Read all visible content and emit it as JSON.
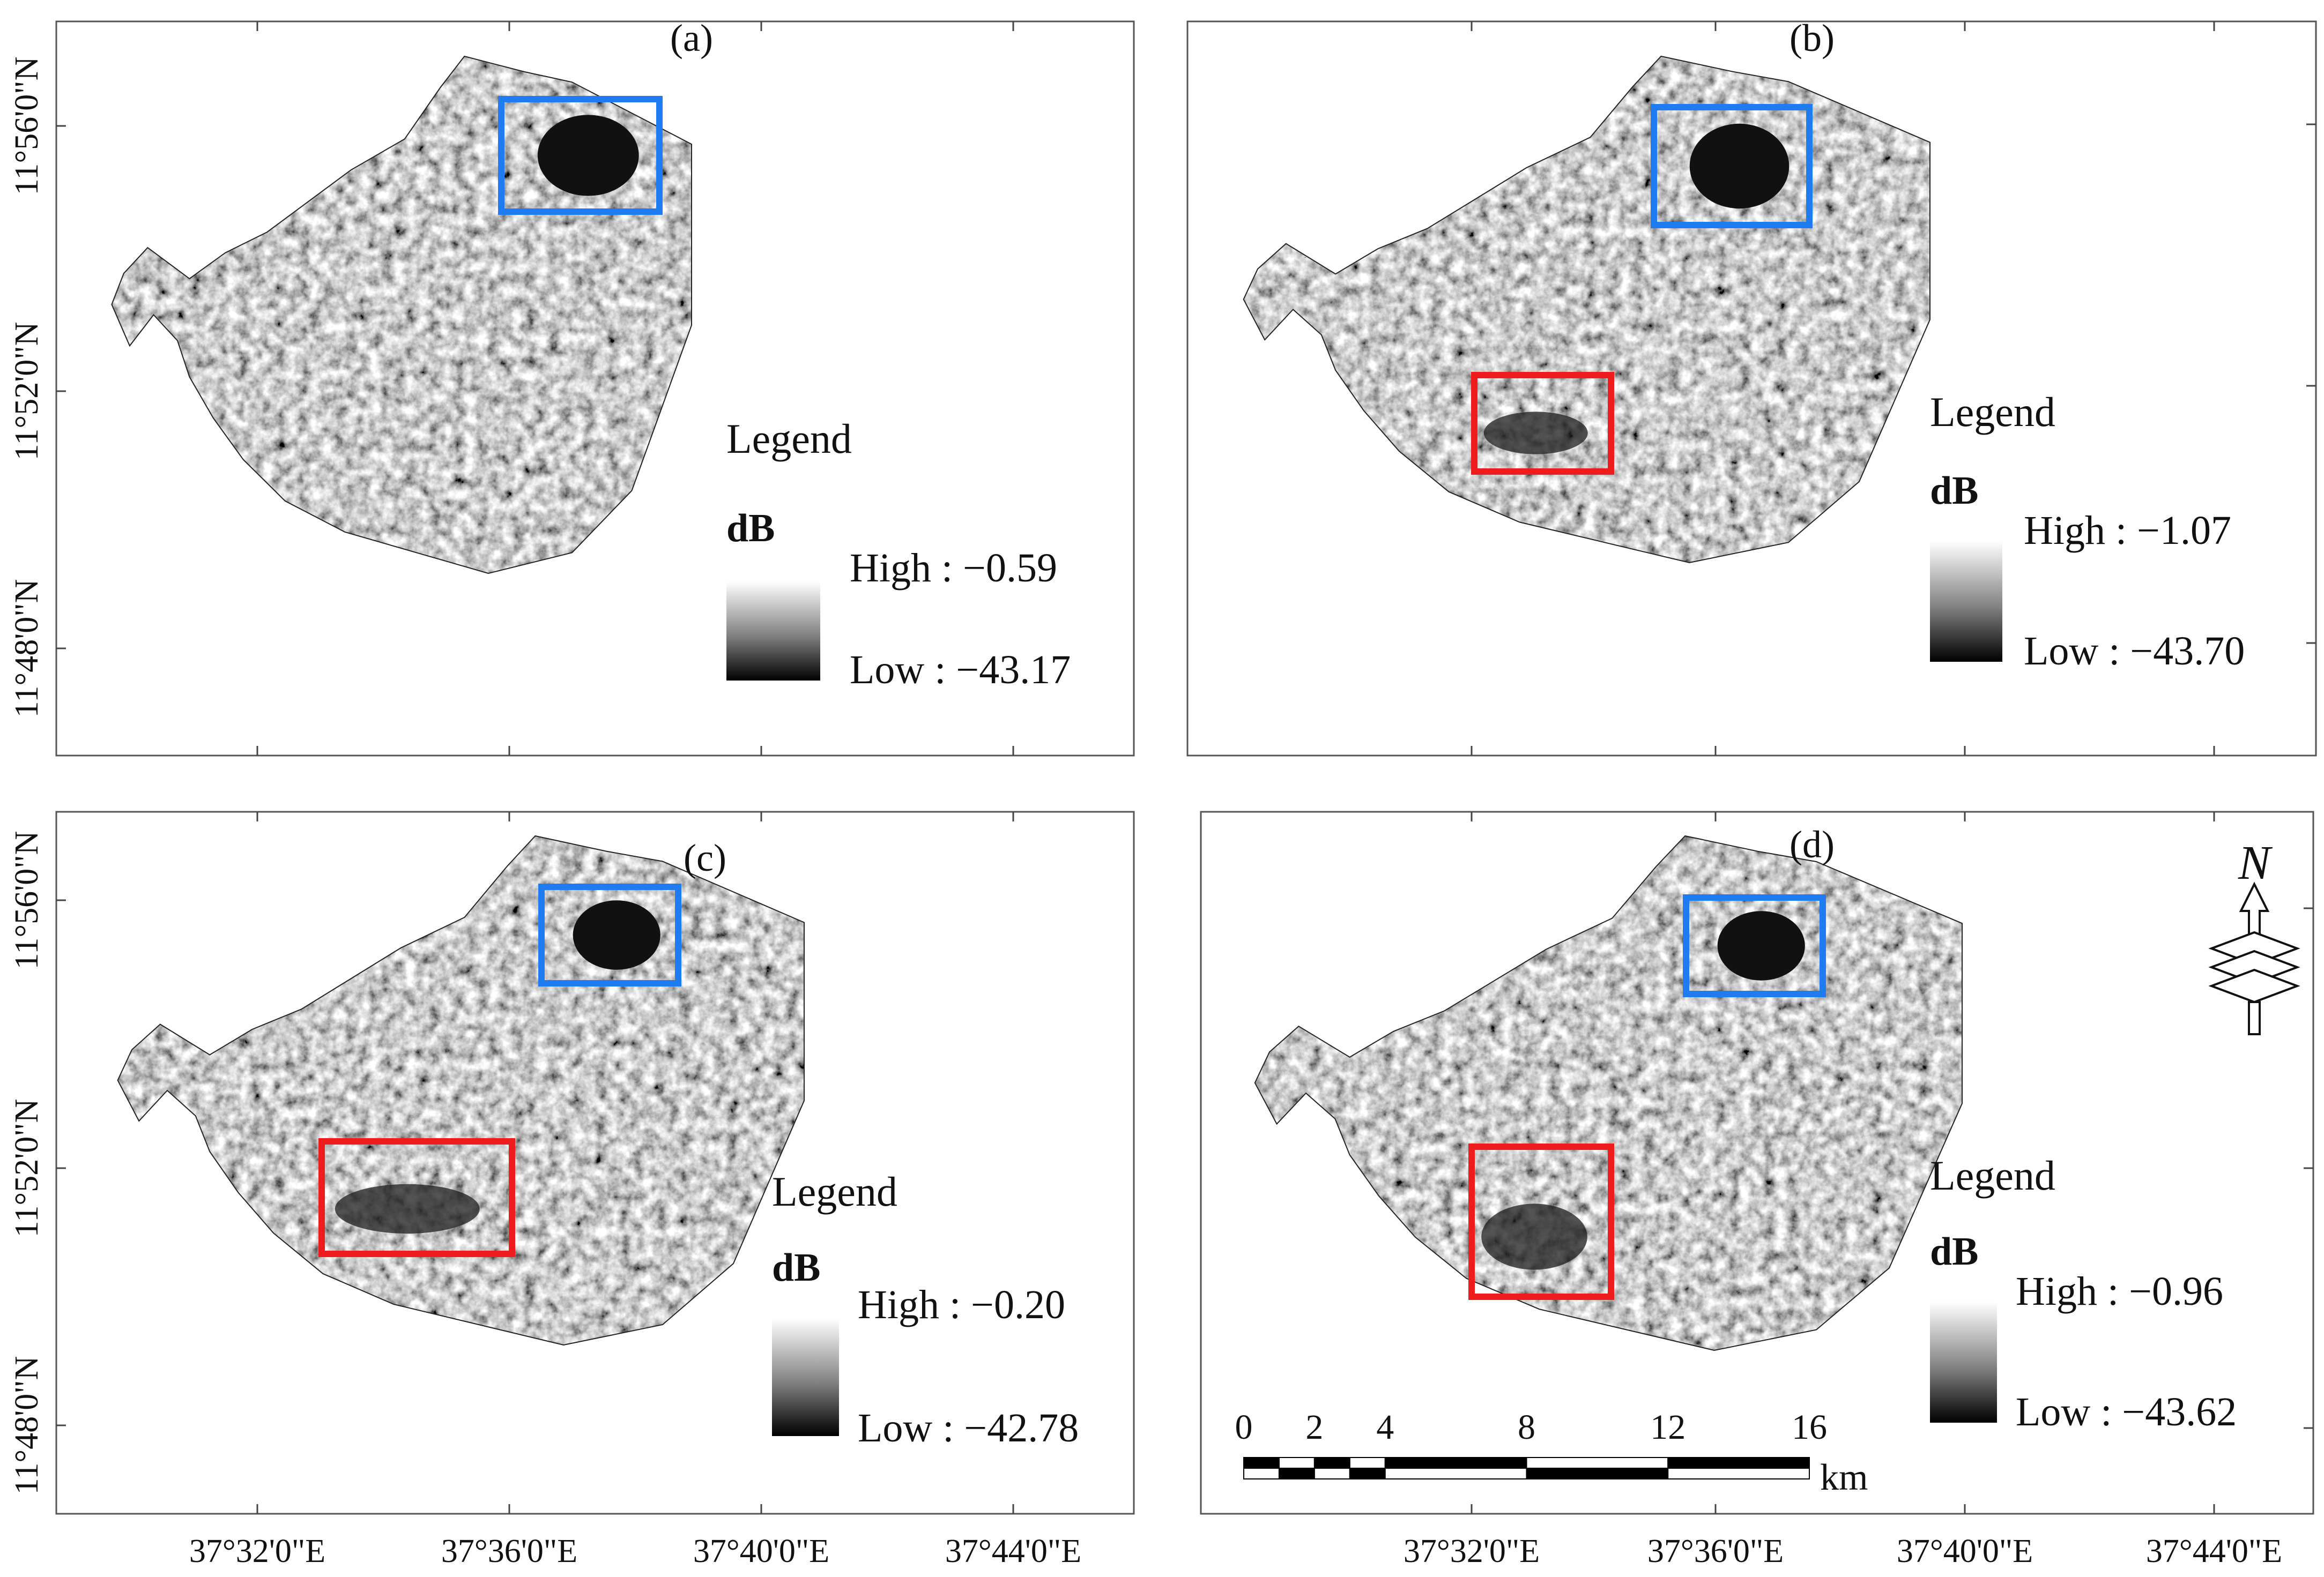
{
  "panels": [
    {
      "id": "a",
      "label": "(a)",
      "lat_labels": [
        "11°56'0\"N",
        "11°52'0\"N",
        "11°48'0\"N"
      ],
      "lon_labels": [],
      "legend": {
        "title": "Legend",
        "unit": "dB",
        "high": "High : −0.59",
        "low": "Low : −43.17"
      },
      "boxes": [
        {
          "color": "#1e7bf0"
        }
      ]
    },
    {
      "id": "b",
      "label": "(b)",
      "lat_labels": [],
      "lon_labels": [],
      "legend": {
        "title": "Legend",
        "unit": "dB",
        "high": "High : −1.07",
        "low": "Low : −43.70"
      },
      "boxes": [
        {
          "color": "#1e7bf0"
        },
        {
          "color": "#ee1c1c"
        }
      ]
    },
    {
      "id": "c",
      "label": "(c)",
      "lat_labels": [
        "11°56'0\"N",
        "11°52'0\"N",
        "11°48'0\"N"
      ],
      "lon_labels": [
        "37°32'0\"E",
        "37°36'0\"E",
        "37°40'0\"E",
        "37°44'0\"E"
      ],
      "legend": {
        "title": "Legend",
        "unit": "dB",
        "high": "High : −0.20",
        "low": "Low : −42.78"
      },
      "boxes": [
        {
          "color": "#1e7bf0"
        },
        {
          "color": "#ee1c1c"
        }
      ]
    },
    {
      "id": "d",
      "label": "(d)",
      "lat_labels": [],
      "lon_labels": [
        "37°32'0\"E",
        "37°36'0\"E",
        "37°40'0\"E",
        "37°44'0\"E"
      ],
      "legend": {
        "title": "Legend",
        "unit": "dB",
        "high": "High : −0.96",
        "low": "Low : −43.62"
      },
      "boxes": [
        {
          "color": "#1e7bf0"
        },
        {
          "color": "#ee1c1c"
        }
      ]
    }
  ],
  "top_lon_labels": [
    "37°32'0\"E",
    "37°36'0\"E",
    "37°40'0\"E",
    "37°44'0\"E"
  ],
  "scale_bar": {
    "ticks": [
      "0",
      "2",
      "4",
      "8",
      "12",
      "16"
    ],
    "unit": "km"
  },
  "north_arrow": {
    "letter": "N",
    "icon": "north-arrow-icon"
  }
}
